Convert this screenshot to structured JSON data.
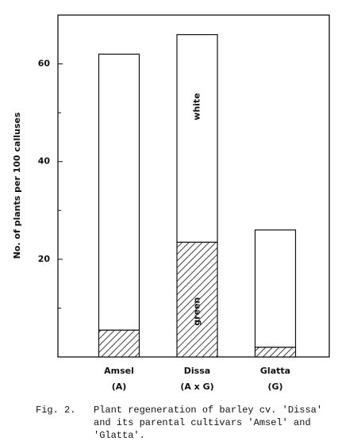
{
  "chart_data": {
    "type": "stacked_bar",
    "y_label": "No. of plants per 100 calluses",
    "categories": [
      "Amsel",
      "Dissa",
      "Glatta"
    ],
    "category_sublabels": [
      "(A)",
      "(A x G)",
      "(G)"
    ],
    "series": [
      {
        "name": "green",
        "hatch": true,
        "values": [
          5.5,
          23.5,
          2
        ]
      },
      {
        "name": "white",
        "hatch": false,
        "values": [
          56.5,
          42.5,
          24
        ]
      }
    ],
    "series_label_category": 1,
    "ylim": [
      0,
      70
    ],
    "yticks": [
      20,
      40,
      60
    ],
    "yticks_minor": [
      10,
      30,
      50
    ],
    "caption_label": "Fig. 2.",
    "caption_lines": [
      "Plant regeneration of barley cv. 'Dissa'",
      "and its parental cultivars 'Amsel' and",
      "'Glatta'."
    ]
  }
}
